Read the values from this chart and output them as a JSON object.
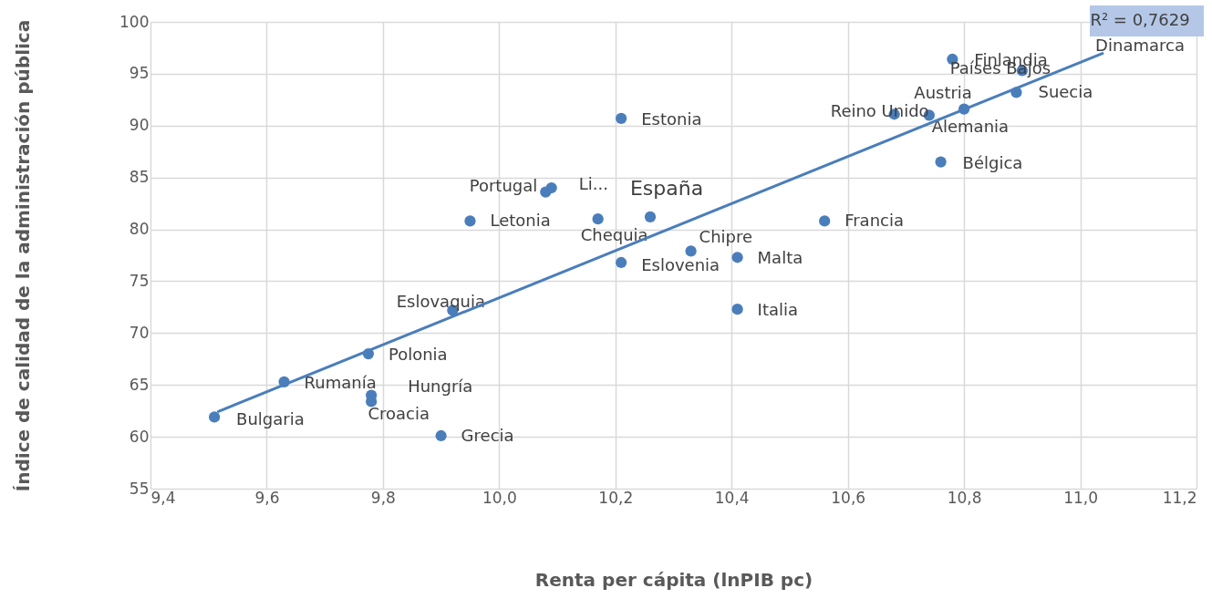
{
  "chart_data": {
    "type": "scatter",
    "xlabel": "Renta per cápita (lnPIB pc)",
    "ylabel": "Índice de calidad de la administración pública",
    "xlim": [
      9.4,
      11.2
    ],
    "xticks": [
      {
        "value": 9.4,
        "label": "9,4"
      },
      {
        "value": 9.6,
        "label": "9,6"
      },
      {
        "value": 9.8,
        "label": "9,8"
      },
      {
        "value": 10.0,
        "label": "10,0"
      },
      {
        "value": 10.2,
        "label": "10,2"
      },
      {
        "value": 10.4,
        "label": "10,4"
      },
      {
        "value": 10.6,
        "label": "10,6"
      },
      {
        "value": 10.8,
        "label": "10,8"
      },
      {
        "value": 11.0,
        "label": "11,0"
      },
      {
        "value": 11.2,
        "label": "11,2"
      }
    ],
    "ylim": [
      55,
      100
    ],
    "yticks": [
      55,
      60,
      65,
      70,
      75,
      80,
      85,
      90,
      95,
      100
    ],
    "grid": true,
    "marker": "circle",
    "annotations": [
      "R² = 0,7629",
      "Dinamarca"
    ],
    "series": [
      {
        "type": "scatter",
        "color": "#4a7ebb",
        "x": [
          9.51,
          9.63,
          9.775,
          9.78,
          9.78,
          9.9,
          9.92,
          9.95,
          10.08,
          10.09,
          10.17,
          10.21,
          10.21,
          10.26,
          10.33,
          10.41,
          10.41,
          10.56,
          10.68,
          10.74,
          10.8,
          10.76,
          10.78,
          10.9,
          10.89
        ],
        "values": [
          61.9,
          65.3,
          68.0,
          63.4,
          64.0,
          60.1,
          72.2,
          80.8,
          83.6,
          84.0,
          81.0,
          90.7,
          76.8,
          81.2,
          77.9,
          77.3,
          72.3,
          80.8,
          91.1,
          91.0,
          91.6,
          86.5,
          96.4,
          95.3,
          93.2
        ],
        "value_labels": [
          "Bulgaria",
          "Rumanía",
          "Polonia",
          "Croacia",
          "Hungría",
          "Grecia",
          "Eslovaquia",
          "Letonia",
          "Portugal",
          "Li...",
          "Chequia",
          "Estonia",
          "Eslovenia",
          "España",
          "Chipre",
          "Malta",
          "Italia",
          "Francia",
          "Reino Unido",
          "Alemania",
          "Austria",
          "Bélgica",
          "Finlandia",
          "Países Bajos",
          "Suecia"
        ]
      },
      {
        "type": "line",
        "marker": "none",
        "color": "#4a7ebb",
        "x": [
          9.515,
          11.04
        ],
        "values": [
          62.4,
          97.0
        ]
      }
    ]
  }
}
